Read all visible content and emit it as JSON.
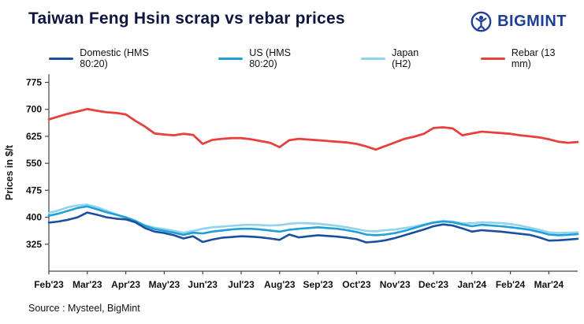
{
  "header": {
    "logo_text": "BIGMINT"
  },
  "footer": {
    "source": "Source : Mysteel, BigMint"
  },
  "chart_data": {
    "type": "line",
    "title": "Taiwan Feng Hsin scrap vs rebar prices",
    "ylabel": "Prices in $/t",
    "ylim": [
      250,
      798
    ],
    "yticks": [
      325,
      400,
      475,
      550,
      625,
      700,
      775
    ],
    "grid": false,
    "legend_position": "top",
    "points_per_month": 4,
    "categories": [
      "Feb'23",
      "Mar'23",
      "Apr'23",
      "May'23",
      "Jun'23",
      "Jul'23",
      "Aug'23",
      "Sep'23",
      "Oct'23",
      "Nov'23",
      "Dec'23",
      "Jan'24",
      "Feb'24",
      "Mar'24"
    ],
    "series": [
      {
        "name": "Domestic (HMS 80:20)",
        "color": "#1b4f9e",
        "width": 2.6,
        "values": [
          385,
          388,
          393,
          400,
          413,
          407,
          400,
          396,
          394,
          386,
          370,
          360,
          356,
          350,
          341,
          347,
          331,
          338,
          343,
          345,
          347,
          346,
          344,
          341,
          337,
          352,
          344,
          347,
          350,
          348,
          346,
          343,
          339,
          330,
          332,
          336,
          342,
          350,
          358,
          366,
          375,
          380,
          377,
          369,
          360,
          364,
          362,
          360,
          357,
          354,
          351,
          344,
          335,
          336,
          338,
          340
        ]
      },
      {
        "name": "US (HMS 80:20)",
        "color": "#219fd8",
        "width": 2.6,
        "values": [
          404,
          410,
          418,
          426,
          430,
          422,
          414,
          407,
          400,
          390,
          376,
          367,
          362,
          357,
          351,
          357,
          355,
          360,
          363,
          366,
          368,
          368,
          366,
          363,
          360,
          365,
          368,
          370,
          372,
          370,
          368,
          364,
          359,
          352,
          350,
          352,
          356,
          362,
          370,
          378,
          385,
          388,
          386,
          380,
          375,
          379,
          377,
          375,
          372,
          369,
          365,
          359,
          352,
          350,
          351,
          353
        ]
      },
      {
        "name": "Japan (H2)",
        "color": "#8fd3ef",
        "width": 2.6,
        "values": [
          412,
          419,
          428,
          433,
          435,
          428,
          418,
          408,
          398,
          388,
          378,
          371,
          367,
          362,
          357,
          362,
          368,
          372,
          374,
          376,
          378,
          379,
          378,
          377,
          378,
          382,
          384,
          383,
          382,
          379,
          376,
          372,
          367,
          362,
          361,
          364,
          366,
          370,
          374,
          380,
          386,
          390,
          388,
          383,
          383,
          386,
          385,
          384,
          381,
          377,
          371,
          365,
          358,
          356,
          357,
          358
        ]
      },
      {
        "name": "Rebar (13 mm)",
        "color": "#e8403d",
        "width": 2.8,
        "values": [
          672,
          680,
          688,
          694,
          701,
          696,
          692,
          690,
          686,
          668,
          652,
          633,
          630,
          628,
          632,
          629,
          604,
          615,
          618,
          620,
          620,
          617,
          612,
          607,
          595,
          614,
          618,
          616,
          614,
          612,
          610,
          608,
          604,
          597,
          588,
          598,
          608,
          618,
          624,
          632,
          648,
          650,
          647,
          628,
          633,
          638,
          636,
          634,
          632,
          628,
          625,
          622,
          617,
          610,
          607,
          609
        ]
      }
    ]
  }
}
